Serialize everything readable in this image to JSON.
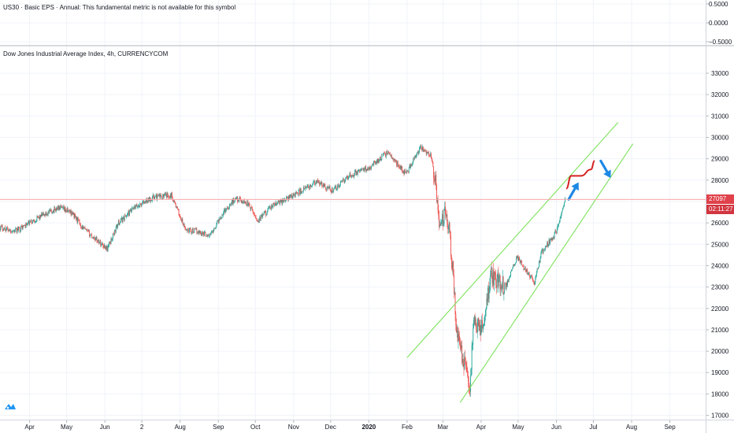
{
  "indicator_pane": {
    "title": "US30 · Basic EPS · Annual: This fundamental metric is not available for this symbol",
    "tick_labels": [
      "0.5000",
      "0.0000",
      "−0.5000"
    ]
  },
  "price_pane": {
    "title": "Dow Jones Industrial Average Index, 4h, CURRENCYCOM",
    "last_price_label": "27097",
    "countdown_label": "02:11:27"
  },
  "colors": {
    "candle_up": "#26a69a",
    "candle_down": "#ef5350",
    "channel": "#7ce35b",
    "price_line": "#f7a6a8",
    "forecast_curve": "#d62020",
    "forecast_arrow": "#1e88e5",
    "grid": "#f0f3fa",
    "logo": "#2196f3"
  },
  "chart_data": {
    "type": "candlestick",
    "symbol": "US30",
    "interval": "4h",
    "y_axis": {
      "ticks": [
        17000,
        18000,
        19000,
        20000,
        21000,
        22000,
        23000,
        24000,
        25000,
        26000,
        27000,
        28000,
        29000,
        30000,
        31000,
        32000,
        33000
      ],
      "tick_labels": [
        "17000",
        "18000",
        "19000",
        "20000",
        "21000",
        "22000",
        "23000",
        "24000",
        "25000",
        "26000",
        "27000",
        "28000",
        "29000",
        "30000",
        "31000",
        "32000",
        "33000"
      ],
      "range": [
        16800,
        33700
      ]
    },
    "x_axis": {
      "tick_labels": [
        "Apr",
        "May",
        "Jun",
        "2",
        "Aug",
        "Sep",
        "Oct",
        "Nov",
        "Dec",
        "2020",
        "Feb",
        "Mar",
        "Apr",
        "May",
        "Jun",
        "Jul",
        "Aug",
        "Sep"
      ],
      "tick_dates": [
        "2019-04-01",
        "2019-05-01",
        "2019-06-01",
        "2019-07-01",
        "2019-08-01",
        "2019-09-01",
        "2019-10-01",
        "2019-11-01",
        "2019-12-01",
        "2020-01-01",
        "2020-02-01",
        "2020-03-01",
        "2020-04-01",
        "2020-05-01",
        "2020-06-01",
        "2020-07-01",
        "2020-08-01",
        "2020-09-01"
      ],
      "range": [
        "2019-03-08",
        "2020-09-30"
      ]
    },
    "price_path": [
      {
        "date": "2019-03-08",
        "close": 25800
      },
      {
        "date": "2019-03-20",
        "close": 25600
      },
      {
        "date": "2019-04-10",
        "close": 26300
      },
      {
        "date": "2019-04-24",
        "close": 26700
      },
      {
        "date": "2019-05-05",
        "close": 26500
      },
      {
        "date": "2019-05-15",
        "close": 25700
      },
      {
        "date": "2019-06-03",
        "close": 24800
      },
      {
        "date": "2019-06-12",
        "close": 26000
      },
      {
        "date": "2019-06-25",
        "close": 26700
      },
      {
        "date": "2019-07-10",
        "close": 27200
      },
      {
        "date": "2019-07-25",
        "close": 27300
      },
      {
        "date": "2019-08-05",
        "close": 25700
      },
      {
        "date": "2019-08-15",
        "close": 25600
      },
      {
        "date": "2019-08-25",
        "close": 25400
      },
      {
        "date": "2019-09-05",
        "close": 26500
      },
      {
        "date": "2019-09-15",
        "close": 27150
      },
      {
        "date": "2019-09-25",
        "close": 26900
      },
      {
        "date": "2019-10-03",
        "close": 26100
      },
      {
        "date": "2019-10-15",
        "close": 26800
      },
      {
        "date": "2019-11-01",
        "close": 27300
      },
      {
        "date": "2019-11-20",
        "close": 27900
      },
      {
        "date": "2019-12-03",
        "close": 27500
      },
      {
        "date": "2019-12-16",
        "close": 28200
      },
      {
        "date": "2020-01-01",
        "close": 28600
      },
      {
        "date": "2020-01-16",
        "close": 29300
      },
      {
        "date": "2020-01-31",
        "close": 28300
      },
      {
        "date": "2020-02-12",
        "close": 29500
      },
      {
        "date": "2020-02-20",
        "close": 29200
      },
      {
        "date": "2020-02-24",
        "close": 27900
      },
      {
        "date": "2020-02-28",
        "close": 25600
      },
      {
        "date": "2020-03-03",
        "close": 26800
      },
      {
        "date": "2020-03-06",
        "close": 25700
      },
      {
        "date": "2020-03-09",
        "close": 23800
      },
      {
        "date": "2020-03-12",
        "close": 21000
      },
      {
        "date": "2020-03-16",
        "close": 20000
      },
      {
        "date": "2020-03-18",
        "close": 19500
      },
      {
        "date": "2020-03-23",
        "close": 18300
      },
      {
        "date": "2020-03-26",
        "close": 21500
      },
      {
        "date": "2020-04-01",
        "close": 20900
      },
      {
        "date": "2020-04-09",
        "close": 23500
      },
      {
        "date": "2020-04-21",
        "close": 23000
      },
      {
        "date": "2020-04-30",
        "close": 24400
      },
      {
        "date": "2020-05-14",
        "close": 23200
      },
      {
        "date": "2020-05-20",
        "close": 24600
      },
      {
        "date": "2020-06-01",
        "close": 25600
      },
      {
        "date": "2020-06-08",
        "close": 27100
      }
    ],
    "channel_lines": [
      {
        "start": {
          "date": "2020-02-01",
          "value": 19700
        },
        "end": {
          "date": "2020-07-21",
          "value": 30700
        }
      },
      {
        "start": {
          "date": "2020-03-15",
          "value": 17600
        },
        "end": {
          "date": "2020-08-02",
          "value": 29700
        }
      }
    ],
    "last_price": 27097,
    "forecast": {
      "curve": [
        {
          "date": "2020-06-09",
          "value": 27600
        },
        {
          "date": "2020-06-13",
          "value": 28200
        },
        {
          "date": "2020-06-21",
          "value": 28200
        },
        {
          "date": "2020-06-29",
          "value": 28500
        },
        {
          "date": "2020-07-02",
          "value": 28900
        }
      ],
      "arrow_up": {
        "from": {
          "date": "2020-06-11",
          "value": 27100
        },
        "to": {
          "date": "2020-06-19",
          "value": 27900
        }
      },
      "arrow_down": {
        "from": {
          "date": "2020-07-07",
          "value": 28900
        },
        "to": {
          "date": "2020-07-15",
          "value": 28100
        }
      }
    }
  }
}
